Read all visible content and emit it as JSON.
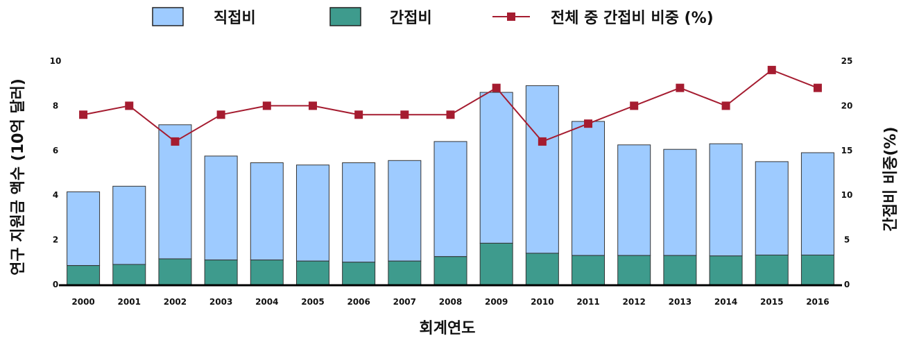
{
  "chart_data": {
    "type": "bar",
    "stacked": true,
    "categories": [
      "2000",
      "2001",
      "2002",
      "2003",
      "2004",
      "2005",
      "2006",
      "2007",
      "2008",
      "2009",
      "2010",
      "2011",
      "2012",
      "2013",
      "2014",
      "2015",
      "2016"
    ],
    "series": [
      {
        "name": "간접비",
        "axis": "left",
        "kind": "bar",
        "values": [
          0.85,
          0.9,
          1.15,
          1.1,
          1.1,
          1.05,
          1.0,
          1.05,
          1.25,
          1.85,
          1.4,
          1.3,
          1.3,
          1.3,
          1.28,
          1.32,
          1.32
        ]
      },
      {
        "name": "직접비",
        "axis": "left",
        "kind": "bar",
        "values": [
          3.3,
          3.5,
          6.0,
          4.65,
          4.35,
          4.3,
          4.45,
          4.5,
          5.15,
          6.75,
          7.5,
          6.0,
          4.95,
          4.75,
          5.02,
          4.18,
          4.58
        ]
      },
      {
        "name": "전체 중 간접비 비중 (%)",
        "axis": "right",
        "kind": "line",
        "values": [
          19,
          20,
          16,
          19,
          20,
          20,
          19,
          19,
          19,
          22,
          16,
          18,
          20,
          22,
          20,
          24,
          22
        ]
      }
    ],
    "ylabel": "연구 지원금 액수 (10억 달러)",
    "y2label": "간접비 비중(%)",
    "xlabel": "회계연도",
    "ylim": [
      0,
      10
    ],
    "y2lim": [
      0,
      25
    ],
    "yticks": [
      "0",
      "2",
      "4",
      "6",
      "8",
      "10"
    ],
    "y2ticks": [
      "0",
      "5",
      "10",
      "15",
      "20",
      "25"
    ],
    "legend_position": "top",
    "grid": false,
    "colors": {
      "direct": "#9ecbff",
      "indirect": "#3e9b8d",
      "line": "#a51c30",
      "marker": "#a51c30"
    }
  }
}
